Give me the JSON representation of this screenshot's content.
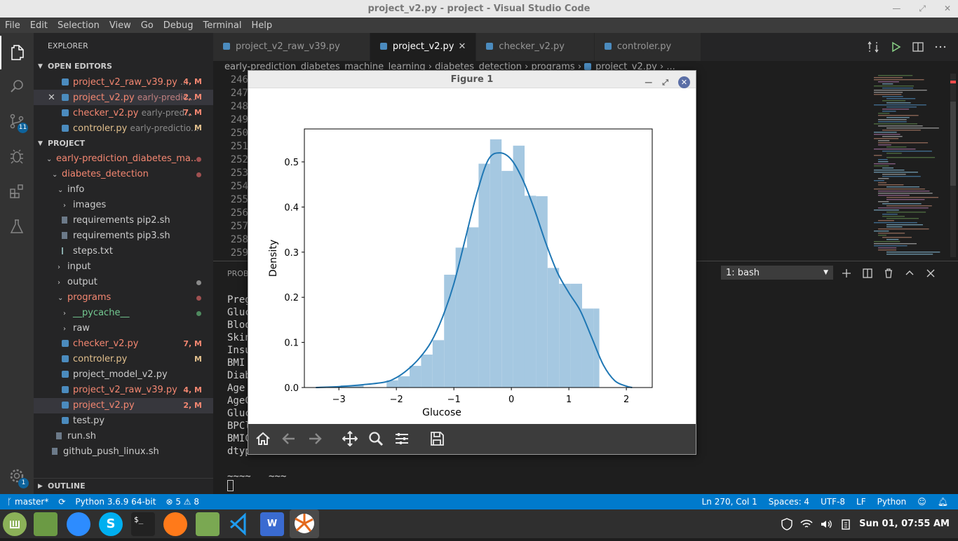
{
  "window": {
    "title": "project_v2.py - project - Visual Studio Code"
  },
  "menu": [
    "File",
    "Edit",
    "Selection",
    "View",
    "Go",
    "Debug",
    "Terminal",
    "Help"
  ],
  "activity": {
    "scm_badge": "11",
    "settings_badge": "1"
  },
  "explorer": {
    "title": "EXPLORER",
    "open_editors_label": "OPEN EDITORS",
    "open_editors": [
      {
        "name": "project_v2_raw_v39.py",
        "desc": "...",
        "status": "4, M"
      },
      {
        "name": "project_v2.py",
        "desc": "early-predic...",
        "status": "2, M"
      },
      {
        "name": "checker_v2.py",
        "desc": "early-pred...",
        "status": "7, M"
      },
      {
        "name": "controler.py",
        "desc": "early-predictio...",
        "status": "M"
      }
    ],
    "project_label": "PROJECT",
    "tree": [
      {
        "name": "early-prediction_diabetes_ma...",
        "chev": "⌄"
      },
      {
        "name": "diabetes_detection",
        "chev": "⌄"
      },
      {
        "name": "info",
        "chev": "⌄"
      },
      {
        "name": "images",
        "chev": "›"
      },
      {
        "name": "requirements pip2.sh"
      },
      {
        "name": "requirements pip3.sh"
      },
      {
        "name": "steps.txt"
      },
      {
        "name": "input",
        "chev": "›"
      },
      {
        "name": "output",
        "chev": "›"
      },
      {
        "name": "programs",
        "chev": "⌄"
      },
      {
        "name": "__pycache__",
        "chev": "›"
      },
      {
        "name": "raw",
        "chev": "›"
      },
      {
        "name": "checker_v2.py",
        "status": "7, M"
      },
      {
        "name": "controler.py",
        "status": "M"
      },
      {
        "name": "project_model_v2.py"
      },
      {
        "name": "project_v2_raw_v39.py",
        "status": "4, M"
      },
      {
        "name": "project_v2.py",
        "status": "2, M"
      },
      {
        "name": "test.py"
      },
      {
        "name": "run.sh"
      },
      {
        "name": "github_push_linux.sh"
      }
    ],
    "outline_label": "OUTLINE"
  },
  "tabs": [
    {
      "label": "project_v2_raw_v39.py"
    },
    {
      "label": "project_v2.py"
    },
    {
      "label": "checker_v2.py"
    },
    {
      "label": "controler.py"
    }
  ],
  "breadcrumb": [
    "early-prediction_diabetes_machine_learning",
    "diabetes_detection",
    "programs",
    "project_v2.py",
    "..."
  ],
  "line_numbers": [
    "246",
    "247",
    "248",
    "249",
    "250",
    "251",
    "252",
    "253",
    "254",
    "255",
    "256",
    "257",
    "258",
    "259"
  ],
  "panel": {
    "tab_label": "PROB",
    "terminal_select": "1: bash",
    "terminal_lines": [
      "Preg",
      "Gluc",
      "Bloo",
      "Skin",
      "Insu",
      "BMI",
      "Diab",
      "Age",
      "AgeC",
      "Gluc",
      "BPCl",
      "BMIC",
      "dtyp",
      "",
      "~~~~   ~~~"
    ]
  },
  "status": {
    "branch": "master*",
    "python": "Python 3.6.9 64-bit",
    "errors": "5",
    "warnings": "8",
    "position": "Ln 270, Col 1",
    "spaces": "Spaces: 4",
    "encoding": "UTF-8",
    "eol": "LF",
    "language": "Python"
  },
  "taskbar": {
    "clock": "Sun 01, 07:55 AM"
  },
  "figure": {
    "title": "Figure 1"
  },
  "chart_data": {
    "type": "bar",
    "xlabel": "Glucose",
    "ylabel": "Density",
    "xlim": [
      -3.6,
      2.45
    ],
    "ylim": [
      0,
      0.573
    ],
    "xticks": [
      "−3",
      "−2",
      "−1",
      "0",
      "1",
      "2"
    ],
    "xtick_values": [
      -3,
      -2,
      -1,
      0,
      1,
      2
    ],
    "yticks": [
      "0.0",
      "0.1",
      "0.2",
      "0.3",
      "0.4",
      "0.5"
    ],
    "ytick_values": [
      0,
      0.1,
      0.2,
      0.3,
      0.4,
      0.5
    ],
    "histogram": {
      "bins": [
        [
          -3.37,
          -3.17,
          0.0
        ],
        [
          -3.17,
          -2.97,
          0.0
        ],
        [
          -2.97,
          -2.77,
          0.005
        ],
        [
          -2.77,
          -2.57,
          0.005
        ],
        [
          -2.57,
          -2.37,
          0.0
        ],
        [
          -2.37,
          -2.17,
          0.0
        ],
        [
          -2.17,
          -1.97,
          0.016
        ],
        [
          -1.97,
          -1.77,
          0.025
        ],
        [
          -1.77,
          -1.57,
          0.048
        ],
        [
          -1.57,
          -1.37,
          0.073
        ],
        [
          -1.37,
          -1.17,
          0.105
        ],
        [
          -1.17,
          -0.97,
          0.25
        ],
        [
          -0.97,
          -0.77,
          0.31
        ],
        [
          -0.77,
          -0.57,
          0.355
        ],
        [
          -0.57,
          -0.37,
          0.496
        ],
        [
          -0.37,
          -0.17,
          0.55
        ],
        [
          -0.17,
          0.03,
          0.48
        ],
        [
          0.03,
          0.23,
          0.536
        ],
        [
          0.23,
          0.43,
          0.425
        ],
        [
          0.43,
          0.63,
          0.424
        ],
        [
          0.63,
          0.83,
          0.265
        ],
        [
          0.83,
          1.03,
          0.23
        ],
        [
          1.03,
          1.23,
          0.23
        ],
        [
          1.23,
          1.43,
          0.175
        ],
        [
          1.43,
          1.53,
          0.175
        ]
      ],
      "color": "#a5c8e1"
    },
    "kde": {
      "x": [
        -3.4,
        -3.0,
        -2.6,
        -2.2,
        -2.0,
        -1.8,
        -1.6,
        -1.4,
        -1.2,
        -1.0,
        -0.8,
        -0.6,
        -0.4,
        -0.2,
        0.0,
        0.2,
        0.4,
        0.6,
        0.8,
        1.0,
        1.2,
        1.4,
        1.6,
        1.8,
        2.0,
        2.1
      ],
      "y": [
        0.0,
        0.002,
        0.006,
        0.012,
        0.022,
        0.04,
        0.065,
        0.1,
        0.155,
        0.23,
        0.33,
        0.43,
        0.505,
        0.52,
        0.505,
        0.46,
        0.395,
        0.32,
        0.255,
        0.21,
        0.17,
        0.11,
        0.05,
        0.015,
        0.003,
        0.0
      ],
      "color": "#1f77b4"
    }
  }
}
